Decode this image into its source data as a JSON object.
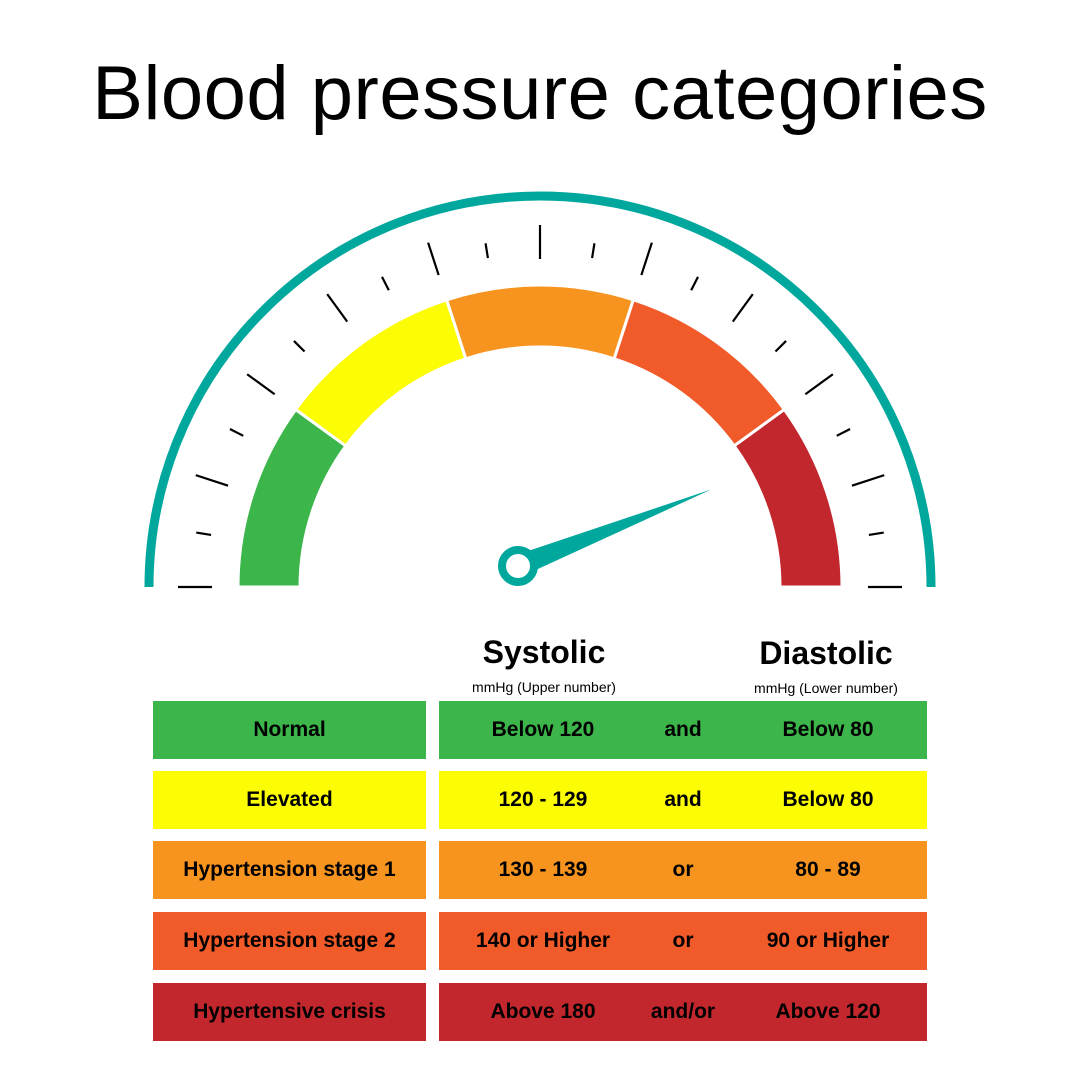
{
  "title": "Blood pressure categories",
  "columns": {
    "systolic": {
      "label": "Systolic",
      "unit": "mmHg (Upper number)"
    },
    "diastolic": {
      "label": "Diastolic",
      "unit": "mmHg (Lower number)"
    }
  },
  "rows": [
    {
      "category": "Normal",
      "systolic": "Below 120",
      "conjunction": "and",
      "diastolic": "Below 80",
      "color": "#3cb54a"
    },
    {
      "category": "Elevated",
      "systolic": "120 - 129",
      "conjunction": "and",
      "diastolic": "Below 80",
      "color": "#fcfc04"
    },
    {
      "category": "Hypertension stage 1",
      "systolic": "130 - 139",
      "conjunction": "or",
      "diastolic": "80 - 89",
      "color": "#f7941f"
    },
    {
      "category": "Hypertension stage 2",
      "systolic": "140 or Higher",
      "conjunction": "or",
      "diastolic": "90 or Higher",
      "color": "#f15a29"
    },
    {
      "category": "Hypertensive crisis",
      "systolic": "Above 180",
      "conjunction": "and/or",
      "diastolic": "Above 120",
      "color": "#c1272d"
    }
  ],
  "gauge": {
    "ring_color": "#00a79d",
    "needle_color": "#00a79d",
    "needle_level": 0.88,
    "segments": [
      {
        "name": "Normal",
        "color": "#3cb54a"
      },
      {
        "name": "Elevated",
        "color": "#fcfc04"
      },
      {
        "name": "Hypertension stage 1",
        "color": "#f7941f"
      },
      {
        "name": "Hypertension stage 2",
        "color": "#f15a29"
      },
      {
        "name": "Hypertensive crisis",
        "color": "#c1272d"
      }
    ]
  }
}
